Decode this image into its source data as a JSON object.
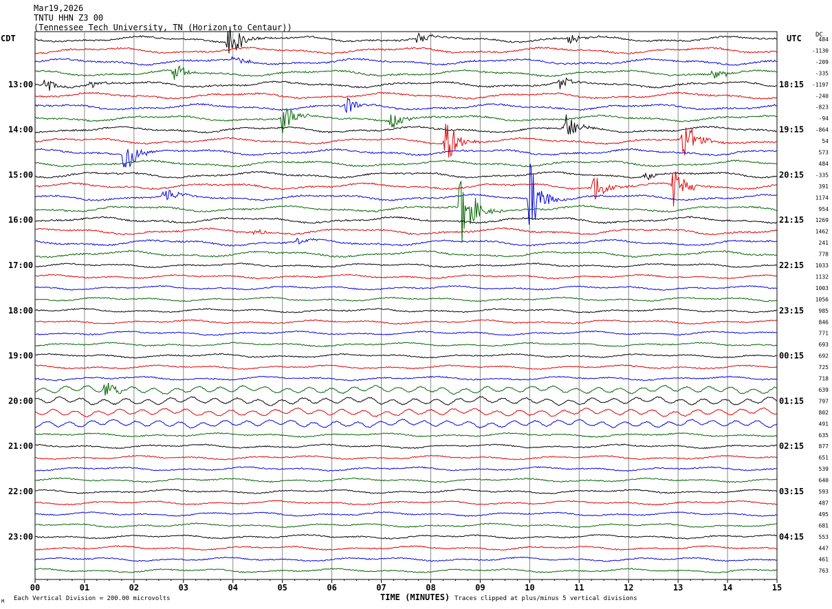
{
  "header": {
    "date": "Mar19,2026",
    "station": "TNTU HHN Z3 00",
    "location": "(Tennessee Tech University, TN (Horizon to Centaur))"
  },
  "axes": {
    "left_label": "CDT",
    "right_label": "UTC",
    "dc_label": "DC",
    "x_title": "TIME (MINUTES)",
    "scale_note": "Each Vertical Division =  200.00 microvolts",
    "clip_note": "Traces clipped at plus/minus 5 vertical divisions",
    "corner_mark": "M"
  },
  "chart_data": {
    "type": "line",
    "title": "TNTU HHN Z3 00",
    "xlabel": "TIME (MINUTES)",
    "xlim": [
      0,
      15
    ],
    "x_ticks": [
      "00",
      "01",
      "02",
      "03",
      "04",
      "05",
      "06",
      "07",
      "08",
      "09",
      "10",
      "11",
      "12",
      "13",
      "14",
      "15"
    ],
    "rows": 48,
    "row_minutes": 15,
    "left_time_labels": [
      {
        "row": 4,
        "label": "13:00"
      },
      {
        "row": 8,
        "label": "14:00"
      },
      {
        "row": 12,
        "label": "15:00"
      },
      {
        "row": 16,
        "label": "16:00"
      },
      {
        "row": 20,
        "label": "17:00"
      },
      {
        "row": 24,
        "label": "18:00"
      },
      {
        "row": 28,
        "label": "19:00"
      },
      {
        "row": 32,
        "label": "20:00"
      },
      {
        "row": 36,
        "label": "21:00"
      },
      {
        "row": 40,
        "label": "22:00"
      },
      {
        "row": 44,
        "label": "23:00"
      }
    ],
    "right_time_labels": [
      {
        "row": 4,
        "label": "18:15"
      },
      {
        "row": 8,
        "label": "19:15"
      },
      {
        "row": 12,
        "label": "20:15"
      },
      {
        "row": 16,
        "label": "21:15"
      },
      {
        "row": 20,
        "label": "22:15"
      },
      {
        "row": 24,
        "label": "23:15"
      },
      {
        "row": 28,
        "label": "00:15"
      },
      {
        "row": 32,
        "label": "01:15"
      },
      {
        "row": 36,
        "label": "02:15"
      },
      {
        "row": 40,
        "label": "03:15"
      },
      {
        "row": 44,
        "label": "04:15"
      }
    ],
    "dc_offsets": [
      "484",
      "-1130",
      "-209",
      "-335",
      "-1197",
      "-240",
      "-823",
      "-94",
      "-864",
      "54",
      "573",
      "484",
      "-335",
      "391",
      "1174",
      "954",
      "1269",
      "1462",
      "241",
      "778",
      "1033",
      "1132",
      "1003",
      "1056",
      "985",
      "846",
      "771",
      "693",
      "692",
      "725",
      "718",
      "639",
      "797",
      "802",
      "491",
      "635",
      "877",
      "651",
      "539",
      "640",
      "593",
      "487",
      "495",
      "681",
      "553",
      "447",
      "461",
      "763"
    ],
    "colors": [
      "#000000",
      "#e00000",
      "#0000e0",
      "#006400"
    ],
    "events": [
      {
        "row": 0,
        "minute": 3.9,
        "amp": 36
      },
      {
        "row": 2,
        "minute": 4.0,
        "amp": 8
      },
      {
        "row": 0,
        "minute": 7.7,
        "amp": 12
      },
      {
        "row": 0,
        "minute": 10.8,
        "amp": 10
      },
      {
        "row": 3,
        "minute": 2.8,
        "amp": 16
      },
      {
        "row": 3,
        "minute": 13.7,
        "amp": 9
      },
      {
        "row": 4,
        "minute": 0.2,
        "amp": 14
      },
      {
        "row": 4,
        "minute": 1.1,
        "amp": 8
      },
      {
        "row": 4,
        "minute": 10.6,
        "amp": 12
      },
      {
        "row": 6,
        "minute": 6.3,
        "amp": 14
      },
      {
        "row": 7,
        "minute": 5.0,
        "amp": 26
      },
      {
        "row": 7,
        "minute": 7.2,
        "amp": 12
      },
      {
        "row": 8,
        "minute": 10.7,
        "amp": 24
      },
      {
        "row": 9,
        "minute": 8.3,
        "amp": 42
      },
      {
        "row": 9,
        "minute": 13.1,
        "amp": 38
      },
      {
        "row": 10,
        "minute": 1.8,
        "amp": 34
      },
      {
        "row": 12,
        "minute": 12.3,
        "amp": 8
      },
      {
        "row": 13,
        "minute": 11.3,
        "amp": 30
      },
      {
        "row": 13,
        "minute": 12.9,
        "amp": 36
      },
      {
        "row": 14,
        "minute": 2.6,
        "amp": 16
      },
      {
        "row": 14,
        "minute": 10.0,
        "amp": 60
      },
      {
        "row": 15,
        "minute": 8.6,
        "amp": 70
      },
      {
        "row": 17,
        "minute": 4.4,
        "amp": 6
      },
      {
        "row": 18,
        "minute": 5.3,
        "amp": 6
      },
      {
        "row": 31,
        "minute": 1.4,
        "amp": 14
      }
    ],
    "ylim": [
      0,
      48
    ]
  }
}
